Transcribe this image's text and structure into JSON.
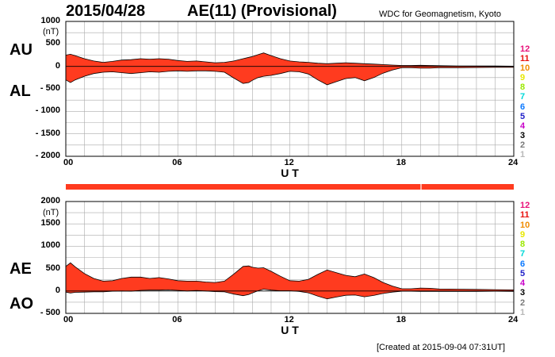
{
  "header": {
    "date": "2015/04/28",
    "title": "AE(11) (Provisional)",
    "source": "WDC for Geomagnetism, Kyoto"
  },
  "footer": {
    "created": "[Created at 2015-09-04 07:31UT]"
  },
  "colors": {
    "fill": "#ff3b1f",
    "outline": "#000000",
    "grid": "#aaaaaa",
    "bar": "#ff3b1f"
  },
  "legend_items": [
    {
      "label": "12",
      "color": "#e8127a"
    },
    {
      "label": "11",
      "color": "#e8120f"
    },
    {
      "label": "10",
      "color": "#f08c00"
    },
    {
      "label": "9",
      "color": "#e8e800"
    },
    {
      "label": "8",
      "color": "#9be800"
    },
    {
      "label": "7",
      "color": "#00d8d8"
    },
    {
      "label": "6",
      "color": "#0a78ff"
    },
    {
      "label": "5",
      "color": "#1e1ec8"
    },
    {
      "label": "4",
      "color": "#c800c8"
    },
    {
      "label": "3",
      "color": "#000000"
    },
    {
      "label": "2",
      "color": "#7a7a7a"
    },
    {
      "label": "1",
      "color": "#b8b8b8"
    }
  ],
  "chart_data": [
    {
      "type": "area",
      "panel": "AU/AL",
      "unit": "(nT)",
      "upper_label": "AU",
      "lower_label": "AL",
      "xlabel": "U T",
      "xlim": [
        0,
        24
      ],
      "ylim": [
        -2000,
        1000
      ],
      "x_ticks": [
        0,
        6,
        12,
        18,
        24
      ],
      "x_tick_labels": [
        "00",
        "06",
        "12",
        "18",
        "24"
      ],
      "y_ticks": [
        1000,
        500,
        0,
        -500,
        -1000,
        -1500,
        -2000
      ],
      "y_tick_labels": [
        "1000",
        "500",
        "0",
        "- 500",
        "- 1000",
        "- 1500",
        "- 2000"
      ],
      "grid": true,
      "x": [
        0,
        0.25,
        0.5,
        1,
        1.5,
        2,
        2.5,
        3,
        3.5,
        4,
        4.5,
        5,
        5.5,
        6,
        6.5,
        7,
        7.5,
        8,
        8.5,
        9,
        9.5,
        9.8,
        10,
        10.3,
        10.6,
        11,
        11.5,
        12,
        12.5,
        13,
        13.5,
        14,
        14.5,
        15,
        15.5,
        16,
        16.5,
        17,
        17.5,
        18,
        18.5,
        19,
        19.5,
        20,
        21,
        22,
        23,
        24
      ],
      "series": [
        {
          "name": "AU",
          "values": [
            250,
            270,
            240,
            170,
            120,
            90,
            110,
            140,
            150,
            170,
            160,
            170,
            160,
            130,
            110,
            120,
            100,
            80,
            90,
            120,
            170,
            200,
            220,
            260,
            300,
            240,
            170,
            120,
            100,
            90,
            70,
            60,
            70,
            80,
            70,
            60,
            50,
            40,
            30,
            20,
            20,
            25,
            20,
            15,
            10,
            10,
            10,
            5
          ]
        },
        {
          "name": "AL",
          "values": [
            -300,
            -360,
            -300,
            -220,
            -160,
            -130,
            -120,
            -140,
            -160,
            -140,
            -120,
            -130,
            -110,
            -100,
            -110,
            -100,
            -100,
            -110,
            -130,
            -260,
            -380,
            -360,
            -310,
            -250,
            -220,
            -200,
            -160,
            -110,
            -120,
            -170,
            -300,
            -410,
            -340,
            -270,
            -250,
            -320,
            -250,
            -150,
            -80,
            -30,
            -30,
            -40,
            -40,
            -30,
            -30,
            -25,
            -20,
            -20
          ]
        }
      ]
    },
    {
      "type": "area",
      "panel": "AE/AO",
      "unit": "(nT)",
      "upper_label": "AE",
      "lower_label": "AO",
      "xlabel": "U T",
      "xlim": [
        0,
        24
      ],
      "ylim": [
        -500,
        2000
      ],
      "x_ticks": [
        0,
        6,
        12,
        18,
        24
      ],
      "x_tick_labels": [
        "00",
        "06",
        "12",
        "18",
        "24"
      ],
      "y_ticks": [
        2000,
        1500,
        1000,
        500,
        0,
        -500
      ],
      "y_tick_labels": [
        "2000",
        "1500",
        "1000",
        "500",
        "0",
        "- 500"
      ],
      "grid": true,
      "x": [
        0,
        0.25,
        0.5,
        1,
        1.5,
        2,
        2.5,
        3,
        3.5,
        4,
        4.5,
        5,
        5.5,
        6,
        6.5,
        7,
        7.5,
        8,
        8.5,
        9,
        9.5,
        9.8,
        10,
        10.3,
        10.6,
        11,
        11.5,
        12,
        12.5,
        13,
        13.5,
        14,
        14.5,
        15,
        15.5,
        16,
        16.5,
        17,
        17.5,
        18,
        18.5,
        19,
        19.5,
        20,
        21,
        22,
        23,
        24
      ],
      "series": [
        {
          "name": "AE",
          "values": [
            550,
            630,
            540,
            390,
            280,
            220,
            230,
            280,
            310,
            310,
            280,
            300,
            270,
            230,
            220,
            220,
            200,
            190,
            220,
            380,
            550,
            560,
            530,
            510,
            520,
            440,
            330,
            230,
            220,
            260,
            370,
            470,
            410,
            350,
            320,
            380,
            300,
            190,
            110,
            50,
            50,
            65,
            60,
            45,
            40,
            35,
            30,
            25
          ]
        },
        {
          "name": "AO",
          "values": [
            -25,
            -45,
            -30,
            -25,
            -20,
            -20,
            -5,
            0,
            -5,
            15,
            20,
            20,
            25,
            15,
            0,
            10,
            0,
            -15,
            -20,
            -70,
            -105,
            -80,
            -45,
            5,
            40,
            20,
            5,
            5,
            -10,
            -40,
            -115,
            -175,
            -135,
            -95,
            -90,
            -130,
            -100,
            -55,
            -25,
            -5,
            -5,
            -8,
            -10,
            -8,
            -10,
            -8,
            -5,
            -8
          ]
        }
      ]
    }
  ]
}
